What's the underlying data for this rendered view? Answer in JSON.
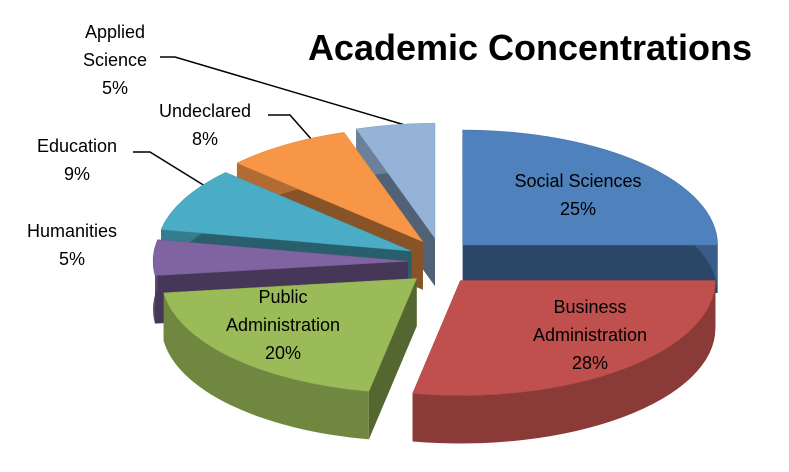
{
  "chart_data": {
    "type": "pie",
    "title": "Academic Concentrations",
    "categories": [
      "Social Sciences",
      "Business Administration",
      "Public Administration",
      "Humanities",
      "Education",
      "Undeclared",
      "Applied Science"
    ],
    "values": [
      25,
      28,
      20,
      5,
      9,
      8,
      5
    ],
    "value_labels": [
      "25%",
      "28%",
      "20%",
      "5%",
      "9%",
      "8%",
      "5%"
    ],
    "colors": [
      "#4f81bd",
      "#c0504d",
      "#9bbb59",
      "#8064a2",
      "#4bacc6",
      "#f79646",
      "#95b3d7"
    ]
  }
}
